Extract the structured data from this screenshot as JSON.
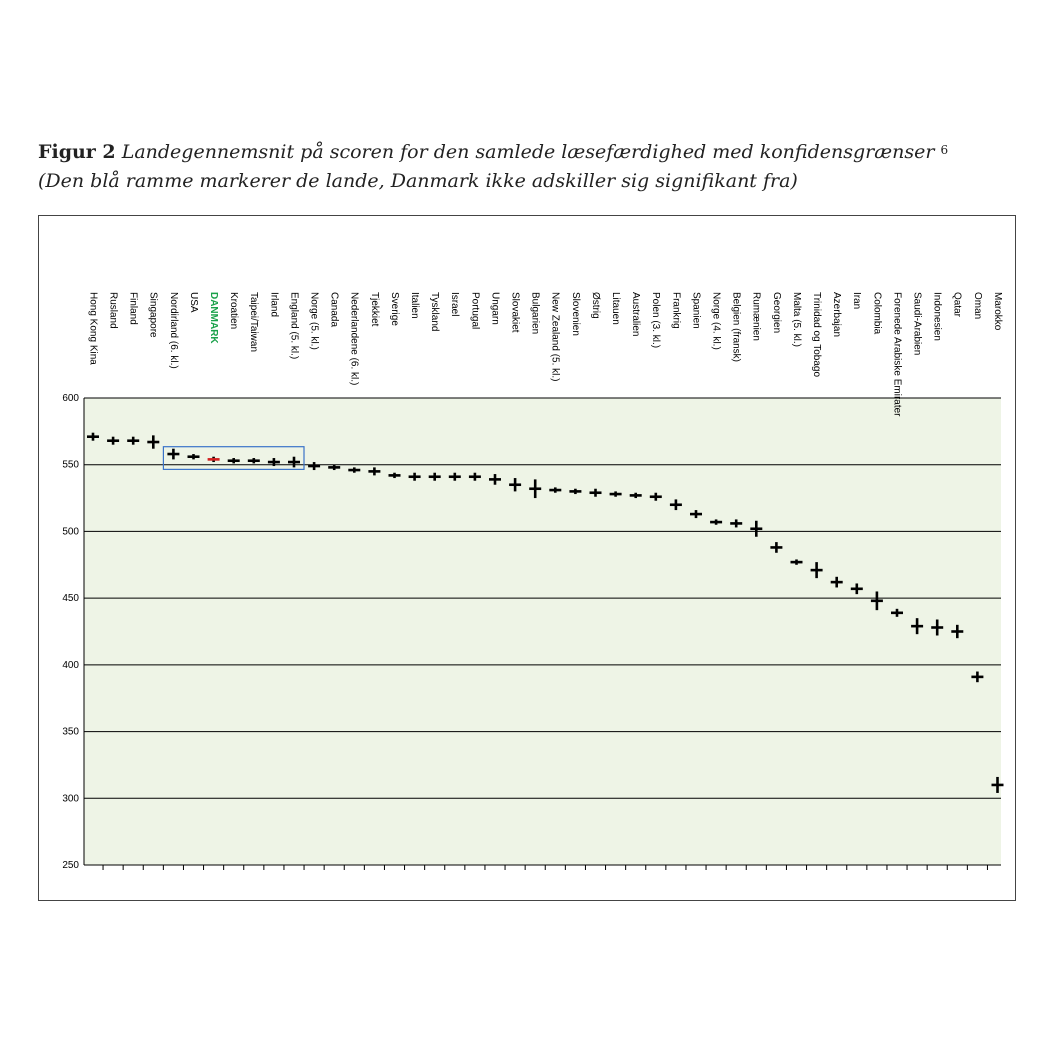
{
  "caption": {
    "lead": "Figur 2",
    "title": "Landegennemsnit på scoren for den samlede læsefærdighed med konfidensgrænser",
    "footnote_mark": "6",
    "subtitle": "(Den blå ramme markerer de lande, Danmark ikke adskiller sig signifikant fra)"
  },
  "colors": {
    "plot_background": "#eef4e6",
    "marker": "#000000",
    "highlight_label": "#1aa14a",
    "highlight_box": "#3a73c9",
    "danmark_center": "#d22020"
  },
  "chart_data": {
    "type": "scatter",
    "title": "",
    "xlabel": "",
    "ylabel": "",
    "ylim": [
      250,
      600
    ],
    "yticks": [
      250,
      300,
      350,
      400,
      450,
      500,
      550,
      600
    ],
    "grid": "horizontal",
    "highlighted_category": "DANMARK",
    "highlight_box_categories": [
      "Nordirland (6. kl.)",
      "England (5. kl.)"
    ],
    "categories": [
      "Hong Kong Kina",
      "Rusland",
      "Finland",
      "Singapore",
      "Nordirland (6. kl.)",
      "USA",
      "DANMARK",
      "Kroatien",
      "Taipei/Taiwan",
      "Irland",
      "England (5. kl.)",
      "Norge (5. kl.)",
      "Canada",
      "Nederlandene (6. kl.)",
      "Tjekkiet",
      "Sverige",
      "Italien",
      "Tyskland",
      "Israel",
      "Portugal",
      "Ungarn",
      "Slovakiet",
      "Bulgarien",
      "New Zealand (5. kl.)",
      "Slovenien",
      "Østrig",
      "Litauen",
      "Australien",
      "Polen (3. kl.)",
      "Frankrig",
      "Spanien",
      "Norge (4. kl.)",
      "Belgien (fransk)",
      "Rumænien",
      "Georgien",
      "Malta (5. kl.)",
      "Trinidad og Tobago",
      "Azerbajan",
      "Iran",
      "Colombia",
      "Forenede Arabiske Emirater",
      "Saudi-Arabien",
      "Indonesien",
      "Qatar",
      "Oman",
      "Marokko"
    ],
    "values": [
      571,
      568,
      568,
      567,
      558,
      556,
      554,
      553,
      553,
      552,
      552,
      549,
      548,
      546,
      545,
      542,
      541,
      541,
      541,
      541,
      539,
      535,
      532,
      531,
      530,
      529,
      528,
      527,
      526,
      520,
      513,
      507,
      506,
      502,
      488,
      477,
      471,
      462,
      457,
      448,
      439,
      429,
      428,
      425,
      391,
      310
    ],
    "ci_half_width": [
      3,
      3,
      3,
      5,
      4,
      2,
      2,
      2,
      2,
      3,
      4,
      3,
      2,
      2,
      3,
      2,
      3,
      3,
      3,
      3,
      4,
      5,
      7,
      2,
      2,
      3,
      2,
      2,
      3,
      4,
      3,
      2,
      3,
      6,
      4,
      2,
      6,
      4,
      4,
      7,
      3,
      6,
      6,
      5,
      4,
      6
    ]
  }
}
